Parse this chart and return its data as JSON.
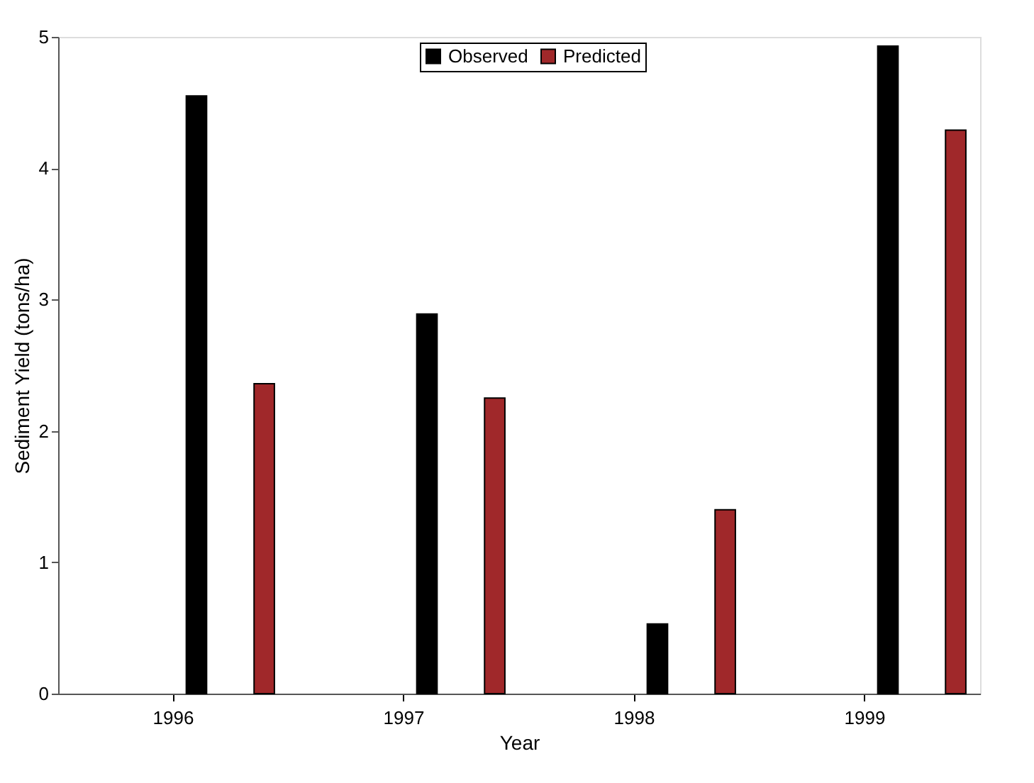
{
  "chart_data": {
    "type": "bar",
    "xlabel": "Year",
    "ylabel": "Sediment Yield (tons/ha)",
    "categories": [
      "1996",
      "1997",
      "1998",
      "1999"
    ],
    "series": [
      {
        "name": "Observed",
        "color": "#000000",
        "values": [
          4.55,
          2.89,
          0.53,
          4.93
        ]
      },
      {
        "name": "Predicted",
        "color": "#a0282a",
        "values": [
          2.36,
          2.25,
          1.4,
          4.29
        ]
      }
    ],
    "ylim": [
      0,
      5
    ],
    "yticks": [
      0,
      1,
      2,
      3,
      4,
      5
    ],
    "grid": false,
    "legend": "top"
  }
}
